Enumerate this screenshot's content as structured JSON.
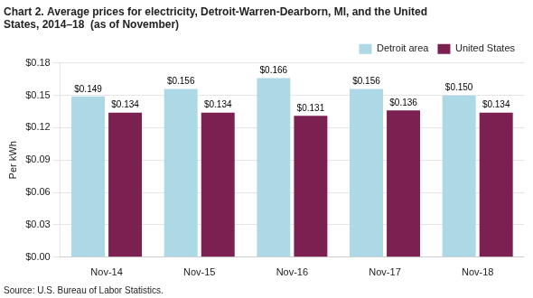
{
  "chart_data": {
    "type": "bar",
    "title": [
      "Chart 2. Average prices for electricity, Detroit-Warren-Dearborn, MI, and the United",
      "States, 2014–18  (as of November)"
    ],
    "ylabel": "Per kWh",
    "annotations": [
      "Source: U.S. Bureau of Labor Statistics."
    ],
    "categories": [
      "Nov-14",
      "Nov-15",
      "Nov-16",
      "Nov-17",
      "Nov-18"
    ],
    "series": [
      {
        "name": "Detroit area",
        "color": "#add8e6",
        "values": [
          0.149,
          0.156,
          0.166,
          0.156,
          0.15
        ],
        "value_labels": [
          "$0.149",
          "$0.156",
          "$0.166",
          "$0.156",
          "$0.150"
        ]
      },
      {
        "name": "United States",
        "color": "#7b2050",
        "values": [
          0.134,
          0.134,
          0.131,
          0.136,
          0.134
        ],
        "value_labels": [
          "$0.134",
          "$0.134",
          "$0.131",
          "$0.136",
          "$0.134"
        ]
      }
    ],
    "ylim": [
      0.0,
      0.18
    ],
    "yticks": [
      {
        "value": 0.0,
        "label": "$0.00"
      },
      {
        "value": 0.03,
        "label": "$0.03"
      },
      {
        "value": 0.06,
        "label": "$0.06"
      },
      {
        "value": 0.09,
        "label": "$0.09"
      },
      {
        "value": 0.12,
        "label": "$0.12"
      },
      {
        "value": 0.15,
        "label": "$0.15"
      },
      {
        "value": 0.18,
        "label": "$0.18"
      }
    ],
    "grid": true,
    "legend": "upper right",
    "data_labels": true
  }
}
